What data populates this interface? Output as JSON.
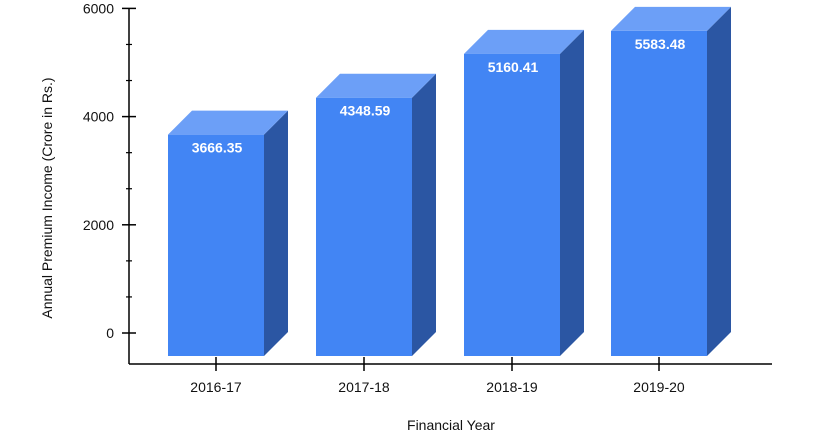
{
  "chart_data": {
    "type": "bar",
    "title": "",
    "xlabel": "Financial Year",
    "ylabel": "Annual Premium Income (Crore in Rs.)",
    "categories": [
      "2016-17",
      "2017-18",
      "2018-19",
      "2019-20"
    ],
    "values": [
      3666.35,
      4348.59,
      5160.41,
      5583.48
    ],
    "data_labels": [
      "3666.35",
      "4348.59",
      "5160.41",
      "5583.48"
    ],
    "yticks": [
      "0",
      "2000",
      "4000",
      "6000"
    ],
    "ylim": [
      0,
      6000
    ],
    "grid": false,
    "style": "3d",
    "colors": {
      "front": "#4285f4",
      "top": "#6c9ff7",
      "side": "#2b56a3",
      "axis": "#000000"
    }
  }
}
